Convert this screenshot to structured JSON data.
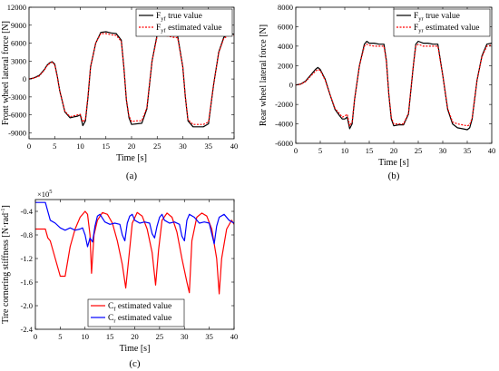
{
  "figure": {
    "background": "#ffffff",
    "colors": {
      "axis": "#000000",
      "true_value": "#000000",
      "estimated_red": "#ff0000",
      "estimated_blue": "#0000ff"
    }
  },
  "chart_data": [
    {
      "id": "a",
      "type": "line",
      "caption": "(a)",
      "xlabel": "Time [s]",
      "ylabel": "Front wheel lateral force [N]",
      "xlim": [
        0,
        40
      ],
      "ylim": [
        -10000,
        12000
      ],
      "xticks": [
        0,
        5,
        10,
        15,
        20,
        25,
        30,
        35,
        40
      ],
      "xtick_labels": [
        "0",
        "5",
        "10",
        "15",
        "20",
        "25",
        "30",
        "35",
        "40"
      ],
      "yticks": [
        -9000,
        -6000,
        -3000,
        0,
        3000,
        6000,
        9000,
        12000
      ],
      "ytick_labels": [
        "-9000",
        "-6000",
        "-3000",
        "0",
        "3000",
        "6000",
        "9000",
        "12000"
      ],
      "legend_position": "top-right",
      "series": [
        {
          "name": "F",
          "name_sub": "yf",
          "name_suffix": " true value",
          "color": "#000000",
          "dash": "solid",
          "x": [
            0,
            1,
            2,
            3,
            3.5,
            4,
            4.5,
            5,
            5.5,
            6,
            7,
            8,
            9,
            9.5,
            10,
            10.5,
            11,
            11.5,
            12,
            13,
            14,
            15,
            16,
            17,
            18,
            18.5,
            19,
            19.5,
            20,
            21,
            22,
            23,
            24,
            25,
            26,
            27,
            28,
            29,
            30,
            30.5,
            31,
            32,
            33,
            34,
            35,
            36,
            37,
            38,
            39,
            40
          ],
          "y": [
            0,
            200,
            600,
            1600,
            2300,
            2700,
            2900,
            2500,
            500,
            -2000,
            -5500,
            -6500,
            -6300,
            -6200,
            -6000,
            -7800,
            -7000,
            -3000,
            2000,
            6000,
            7800,
            7900,
            7700,
            7600,
            6500,
            2000,
            -3500,
            -6500,
            -7600,
            -7500,
            -7400,
            -5000,
            3000,
            7500,
            7600,
            7500,
            7300,
            7200,
            2000,
            -3000,
            -7000,
            -8000,
            -8000,
            -8000,
            -7500,
            -1000,
            4500,
            7000,
            7600,
            7500
          ]
        },
        {
          "name": "F",
          "name_sub": "yf",
          "name_suffix": " estimated value",
          "color": "#ff0000",
          "dash": "dotted",
          "x": [
            0,
            1,
            2,
            3,
            3.5,
            4,
            4.5,
            5,
            5.5,
            6,
            7,
            8,
            9,
            9.5,
            10,
            10.5,
            11,
            11.5,
            12,
            13,
            14,
            15,
            16,
            17,
            18,
            18.5,
            19,
            19.5,
            20,
            21,
            22,
            23,
            24,
            25,
            26,
            27,
            28,
            29,
            30,
            30.5,
            31,
            32,
            33,
            34,
            35,
            36,
            37,
            38,
            39,
            40
          ],
          "y": [
            0,
            150,
            500,
            1500,
            2200,
            2600,
            2800,
            2400,
            400,
            -2000,
            -5400,
            -6300,
            -6100,
            -6000,
            -5900,
            -7200,
            -6700,
            -2800,
            2000,
            6000,
            7600,
            7600,
            7400,
            7300,
            6300,
            2000,
            -3400,
            -6200,
            -7100,
            -7000,
            -7000,
            -4800,
            3000,
            7200,
            7300,
            7200,
            7000,
            6900,
            2000,
            -3000,
            -6800,
            -7600,
            -7600,
            -7600,
            -7200,
            -1000,
            4400,
            6800,
            7300,
            7300
          ]
        }
      ]
    },
    {
      "id": "b",
      "type": "line",
      "caption": "(b)",
      "xlabel": "Time [s]",
      "ylabel": "Rear wheel lateral force [N]",
      "xlim": [
        0,
        40
      ],
      "ylim": [
        -6000,
        8000
      ],
      "xticks": [
        0,
        5,
        10,
        15,
        20,
        25,
        30,
        35,
        40
      ],
      "xtick_labels": [
        "0",
        "5",
        "10",
        "15",
        "20",
        "25",
        "30",
        "35",
        "40"
      ],
      "yticks": [
        -6000,
        -4000,
        -2000,
        0,
        2000,
        4000,
        6000,
        8000
      ],
      "ytick_labels": [
        "-6000",
        "-4000",
        "-2000",
        "0",
        "2000",
        "4000",
        "6000",
        "8000"
      ],
      "legend_position": "top-right",
      "series": [
        {
          "name": "F",
          "name_sub": "yr",
          "name_suffix": " true value",
          "color": "#000000",
          "dash": "solid",
          "x": [
            0,
            1,
            2,
            3,
            4,
            4.5,
            5,
            6,
            7,
            8,
            9,
            9.5,
            10,
            10.5,
            11,
            11.5,
            12,
            13,
            14,
            14.5,
            15,
            16,
            17,
            18,
            18.5,
            19,
            19.5,
            20,
            21,
            22,
            23,
            24,
            24.5,
            25,
            26,
            27,
            28,
            29,
            30,
            31,
            32,
            33,
            34,
            35,
            35.5,
            36,
            37,
            38,
            39,
            40
          ],
          "y": [
            0,
            100,
            400,
            1000,
            1600,
            1800,
            1600,
            600,
            -1000,
            -2500,
            -3200,
            -3500,
            -3500,
            -3300,
            -4500,
            -4000,
            -1500,
            2000,
            4200,
            4500,
            4300,
            4300,
            4200,
            4200,
            2500,
            -1000,
            -3500,
            -4200,
            -4100,
            -4100,
            -3000,
            2000,
            4200,
            4500,
            4300,
            4300,
            4200,
            4200,
            1000,
            -2500,
            -4000,
            -4400,
            -4500,
            -4600,
            -4400,
            -3500,
            500,
            3000,
            4200,
            4300
          ]
        },
        {
          "name": "F",
          "name_sub": "yr",
          "name_suffix": " estimated value",
          "color": "#ff0000",
          "dash": "dotted",
          "x": [
            0,
            1,
            2,
            3,
            4,
            4.5,
            5,
            6,
            7,
            8,
            9,
            9.5,
            10,
            10.5,
            11,
            11.5,
            12,
            13,
            14,
            14.5,
            15,
            16,
            17,
            18,
            18.5,
            19,
            19.5,
            20,
            21,
            22,
            23,
            24,
            24.5,
            25,
            26,
            27,
            28,
            29,
            30,
            31,
            32,
            33,
            34,
            35,
            35.5,
            36,
            37,
            38,
            39,
            40
          ],
          "y": [
            0,
            80,
            350,
            900,
            1400,
            1600,
            1500,
            500,
            -1000,
            -2400,
            -3000,
            -3300,
            -3200,
            -3000,
            -4200,
            -3800,
            -1500,
            2000,
            4000,
            4200,
            4100,
            4000,
            4000,
            4000,
            2400,
            -1000,
            -3300,
            -4000,
            -4000,
            -4000,
            -2900,
            2000,
            4000,
            4200,
            4000,
            4000,
            4000,
            4000,
            1000,
            -2400,
            -3800,
            -4000,
            -4100,
            -4200,
            -4100,
            -3400,
            500,
            2900,
            4000,
            4100
          ]
        }
      ]
    },
    {
      "id": "c",
      "type": "line",
      "caption": "(c)",
      "xlabel": "Time [s]",
      "ylabel": "Tire cornering stiffness [N·rad",
      "ylabel_sup": "-1",
      "ylabel_end": "]",
      "y_multiplier": "×10",
      "y_multiplier_exp": "5",
      "xlim": [
        0,
        40
      ],
      "ylim": [
        -2.4,
        -0.2
      ],
      "xticks": [
        0,
        5,
        10,
        15,
        20,
        25,
        30,
        35,
        40
      ],
      "xtick_labels": [
        "0",
        "5",
        "10",
        "15",
        "20",
        "25",
        "30",
        "35",
        "40"
      ],
      "yticks": [
        -2.4,
        -2.0,
        -1.6,
        -1.2,
        -0.8,
        -0.4
      ],
      "ytick_labels": [
        "-2.4",
        "-2.0",
        "-1.6",
        "-1.2",
        "-0.8",
        "-0.4"
      ],
      "legend_position": "bottom-left",
      "series": [
        {
          "name": "C",
          "name_sub": "f",
          "name_suffix": " estimated value",
          "color": "#ff0000",
          "dash": "solid",
          "x": [
            0,
            2,
            2.5,
            3,
            4,
            5,
            6,
            7,
            8,
            9,
            10,
            10.5,
            11,
            11.3,
            11.8,
            12.5,
            13.5,
            14.5,
            15.5,
            16.5,
            17.5,
            18.2,
            18.8,
            19.5,
            20.5,
            21.5,
            22.5,
            23.5,
            24.2,
            24.8,
            25.5,
            26.5,
            27.5,
            28.5,
            29.5,
            30.5,
            31,
            31.5,
            32.5,
            33.5,
            34.5,
            35.5,
            36.5,
            37,
            37.5,
            38.5,
            39.5,
            40
          ],
          "y": [
            -0.7,
            -0.7,
            -0.85,
            -0.9,
            -1.2,
            -1.5,
            -1.5,
            -1.0,
            -0.7,
            -0.5,
            -0.4,
            -0.45,
            -0.8,
            -1.45,
            -0.8,
            -0.55,
            -0.42,
            -0.45,
            -0.6,
            -0.9,
            -1.3,
            -1.7,
            -1.2,
            -0.6,
            -0.42,
            -0.48,
            -0.7,
            -1.1,
            -1.65,
            -1.05,
            -0.55,
            -0.43,
            -0.5,
            -0.75,
            -1.2,
            -1.6,
            -1.78,
            -0.9,
            -0.5,
            -0.43,
            -0.48,
            -0.7,
            -1.2,
            -1.8,
            -1.2,
            -0.7,
            -0.55,
            -0.62
          ]
        },
        {
          "name": "C",
          "name_sub": "r",
          "name_suffix": " estimated value",
          "color": "#0000ff",
          "dash": "solid",
          "x": [
            0,
            1,
            1.5,
            2,
            2.5,
            3,
            4,
            5,
            6,
            7,
            8,
            9,
            9.5,
            10,
            10.5,
            11,
            11.5,
            12,
            12.5,
            13,
            14,
            15,
            16,
            17,
            17.5,
            18,
            18.5,
            19,
            19.5,
            20,
            21,
            22,
            23,
            23.5,
            24,
            24.5,
            25,
            25.5,
            26,
            27,
            28,
            29,
            29.5,
            30,
            30.5,
            31,
            32,
            33,
            34,
            35,
            35.5,
            36,
            36.5,
            37,
            38,
            39,
            40
          ],
          "y": [
            -0.25,
            -0.25,
            -0.25,
            -0.25,
            -0.4,
            -0.55,
            -0.6,
            -0.68,
            -0.72,
            -0.68,
            -0.72,
            -0.7,
            -0.68,
            -0.8,
            -1.0,
            -0.85,
            -0.92,
            -0.65,
            -0.48,
            -0.45,
            -0.58,
            -0.62,
            -0.6,
            -0.62,
            -0.8,
            -0.9,
            -0.6,
            -0.48,
            -0.45,
            -0.55,
            -0.6,
            -0.58,
            -0.6,
            -0.78,
            -0.85,
            -0.65,
            -0.5,
            -0.45,
            -0.55,
            -0.6,
            -0.58,
            -0.62,
            -0.82,
            -0.9,
            -0.55,
            -0.45,
            -0.5,
            -0.6,
            -0.58,
            -0.6,
            -0.78,
            -0.95,
            -0.65,
            -0.5,
            -0.45,
            -0.55,
            -0.6
          ]
        }
      ]
    }
  ]
}
